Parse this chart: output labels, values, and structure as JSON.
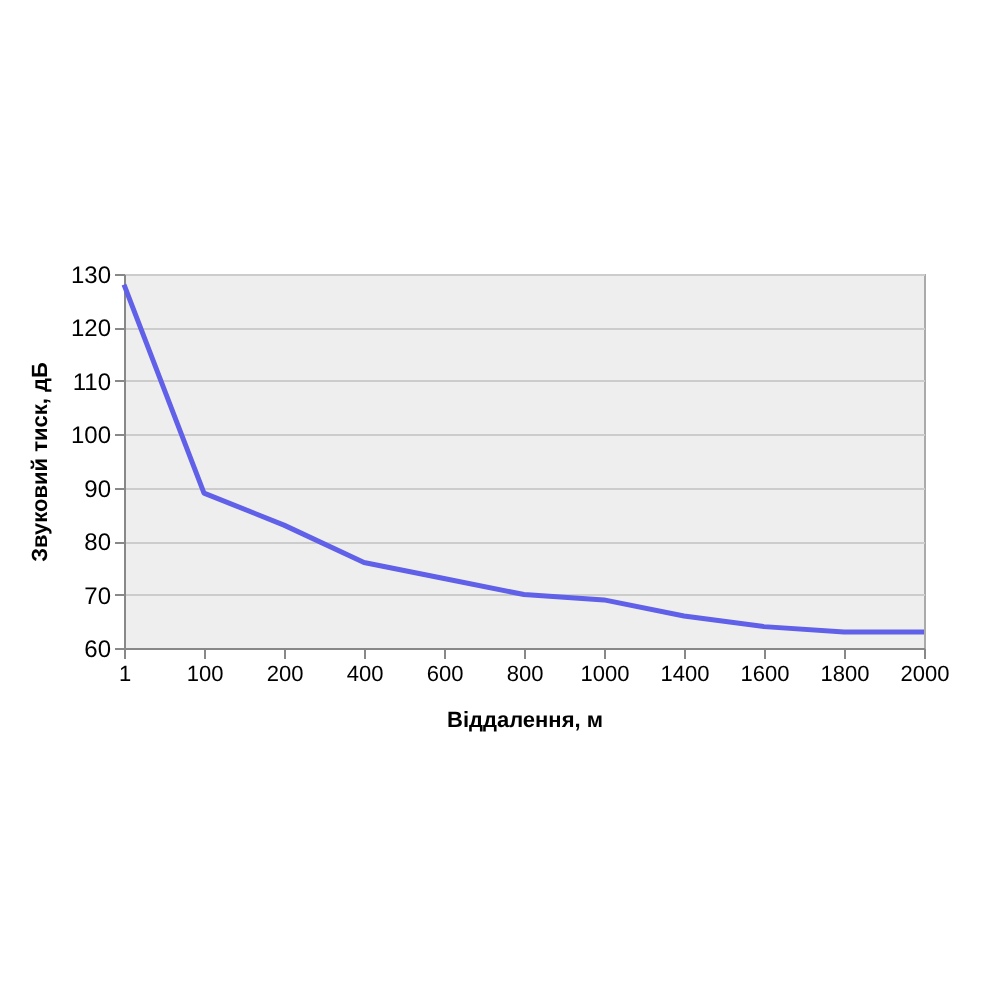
{
  "chart_data": {
    "type": "line",
    "xlabel": "Віддалення, м",
    "ylabel": "Звуковий тиск, дБ",
    "categories": [
      "1",
      "100",
      "200",
      "400",
      "600",
      "800",
      "1000",
      "1400",
      "1600",
      "1800",
      "2000"
    ],
    "series": [
      {
        "color": "#6060e8",
        "values": [
          128,
          89,
          83,
          76,
          73,
          70,
          69,
          66,
          64,
          63,
          63
        ]
      }
    ],
    "ylim": [
      60,
      130
    ],
    "yticks": [
      60,
      70,
      80,
      90,
      100,
      110,
      120,
      130
    ],
    "grid": "y",
    "legend": false,
    "marker": "none",
    "line_style": "solid"
  }
}
